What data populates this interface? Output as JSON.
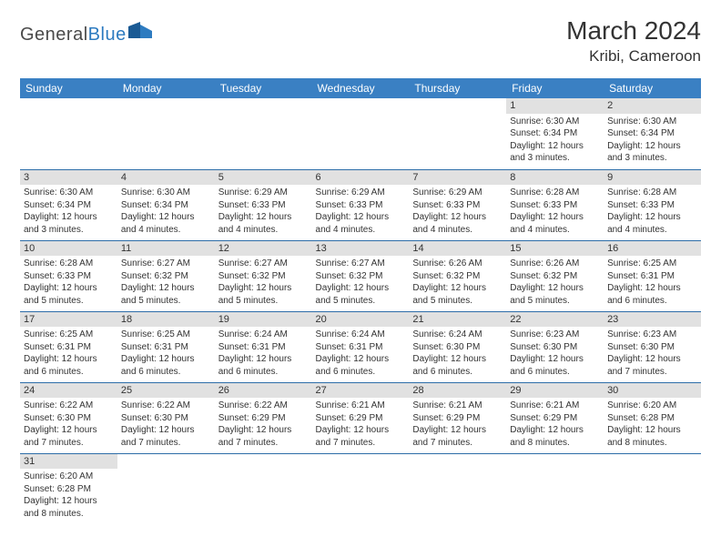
{
  "logo": {
    "text1": "General",
    "text2": "Blue"
  },
  "title": "March 2024",
  "location": "Kribi, Cameroon",
  "colors": {
    "header_bg": "#3a80c3",
    "header_text": "#ffffff",
    "daynum_bg": "#e1e1e1",
    "row_divider": "#2d6da8",
    "logo_gray": "#4a4a4a",
    "logo_blue": "#2d7bc0"
  },
  "day_headers": [
    "Sunday",
    "Monday",
    "Tuesday",
    "Wednesday",
    "Thursday",
    "Friday",
    "Saturday"
  ],
  "weeks": [
    [
      null,
      null,
      null,
      null,
      null,
      {
        "n": "1",
        "sr": "Sunrise: 6:30 AM",
        "ss": "Sunset: 6:34 PM",
        "dl": "Daylight: 12 hours and 3 minutes."
      },
      {
        "n": "2",
        "sr": "Sunrise: 6:30 AM",
        "ss": "Sunset: 6:34 PM",
        "dl": "Daylight: 12 hours and 3 minutes."
      }
    ],
    [
      {
        "n": "3",
        "sr": "Sunrise: 6:30 AM",
        "ss": "Sunset: 6:34 PM",
        "dl": "Daylight: 12 hours and 3 minutes."
      },
      {
        "n": "4",
        "sr": "Sunrise: 6:30 AM",
        "ss": "Sunset: 6:34 PM",
        "dl": "Daylight: 12 hours and 4 minutes."
      },
      {
        "n": "5",
        "sr": "Sunrise: 6:29 AM",
        "ss": "Sunset: 6:33 PM",
        "dl": "Daylight: 12 hours and 4 minutes."
      },
      {
        "n": "6",
        "sr": "Sunrise: 6:29 AM",
        "ss": "Sunset: 6:33 PM",
        "dl": "Daylight: 12 hours and 4 minutes."
      },
      {
        "n": "7",
        "sr": "Sunrise: 6:29 AM",
        "ss": "Sunset: 6:33 PM",
        "dl": "Daylight: 12 hours and 4 minutes."
      },
      {
        "n": "8",
        "sr": "Sunrise: 6:28 AM",
        "ss": "Sunset: 6:33 PM",
        "dl": "Daylight: 12 hours and 4 minutes."
      },
      {
        "n": "9",
        "sr": "Sunrise: 6:28 AM",
        "ss": "Sunset: 6:33 PM",
        "dl": "Daylight: 12 hours and 4 minutes."
      }
    ],
    [
      {
        "n": "10",
        "sr": "Sunrise: 6:28 AM",
        "ss": "Sunset: 6:33 PM",
        "dl": "Daylight: 12 hours and 5 minutes."
      },
      {
        "n": "11",
        "sr": "Sunrise: 6:27 AM",
        "ss": "Sunset: 6:32 PM",
        "dl": "Daylight: 12 hours and 5 minutes."
      },
      {
        "n": "12",
        "sr": "Sunrise: 6:27 AM",
        "ss": "Sunset: 6:32 PM",
        "dl": "Daylight: 12 hours and 5 minutes."
      },
      {
        "n": "13",
        "sr": "Sunrise: 6:27 AM",
        "ss": "Sunset: 6:32 PM",
        "dl": "Daylight: 12 hours and 5 minutes."
      },
      {
        "n": "14",
        "sr": "Sunrise: 6:26 AM",
        "ss": "Sunset: 6:32 PM",
        "dl": "Daylight: 12 hours and 5 minutes."
      },
      {
        "n": "15",
        "sr": "Sunrise: 6:26 AM",
        "ss": "Sunset: 6:32 PM",
        "dl": "Daylight: 12 hours and 5 minutes."
      },
      {
        "n": "16",
        "sr": "Sunrise: 6:25 AM",
        "ss": "Sunset: 6:31 PM",
        "dl": "Daylight: 12 hours and 6 minutes."
      }
    ],
    [
      {
        "n": "17",
        "sr": "Sunrise: 6:25 AM",
        "ss": "Sunset: 6:31 PM",
        "dl": "Daylight: 12 hours and 6 minutes."
      },
      {
        "n": "18",
        "sr": "Sunrise: 6:25 AM",
        "ss": "Sunset: 6:31 PM",
        "dl": "Daylight: 12 hours and 6 minutes."
      },
      {
        "n": "19",
        "sr": "Sunrise: 6:24 AM",
        "ss": "Sunset: 6:31 PM",
        "dl": "Daylight: 12 hours and 6 minutes."
      },
      {
        "n": "20",
        "sr": "Sunrise: 6:24 AM",
        "ss": "Sunset: 6:31 PM",
        "dl": "Daylight: 12 hours and 6 minutes."
      },
      {
        "n": "21",
        "sr": "Sunrise: 6:24 AM",
        "ss": "Sunset: 6:30 PM",
        "dl": "Daylight: 12 hours and 6 minutes."
      },
      {
        "n": "22",
        "sr": "Sunrise: 6:23 AM",
        "ss": "Sunset: 6:30 PM",
        "dl": "Daylight: 12 hours and 6 minutes."
      },
      {
        "n": "23",
        "sr": "Sunrise: 6:23 AM",
        "ss": "Sunset: 6:30 PM",
        "dl": "Daylight: 12 hours and 7 minutes."
      }
    ],
    [
      {
        "n": "24",
        "sr": "Sunrise: 6:22 AM",
        "ss": "Sunset: 6:30 PM",
        "dl": "Daylight: 12 hours and 7 minutes."
      },
      {
        "n": "25",
        "sr": "Sunrise: 6:22 AM",
        "ss": "Sunset: 6:30 PM",
        "dl": "Daylight: 12 hours and 7 minutes."
      },
      {
        "n": "26",
        "sr": "Sunrise: 6:22 AM",
        "ss": "Sunset: 6:29 PM",
        "dl": "Daylight: 12 hours and 7 minutes."
      },
      {
        "n": "27",
        "sr": "Sunrise: 6:21 AM",
        "ss": "Sunset: 6:29 PM",
        "dl": "Daylight: 12 hours and 7 minutes."
      },
      {
        "n": "28",
        "sr": "Sunrise: 6:21 AM",
        "ss": "Sunset: 6:29 PM",
        "dl": "Daylight: 12 hours and 7 minutes."
      },
      {
        "n": "29",
        "sr": "Sunrise: 6:21 AM",
        "ss": "Sunset: 6:29 PM",
        "dl": "Daylight: 12 hours and 8 minutes."
      },
      {
        "n": "30",
        "sr": "Sunrise: 6:20 AM",
        "ss": "Sunset: 6:28 PM",
        "dl": "Daylight: 12 hours and 8 minutes."
      }
    ],
    [
      {
        "n": "31",
        "sr": "Sunrise: 6:20 AM",
        "ss": "Sunset: 6:28 PM",
        "dl": "Daylight: 12 hours and 8 minutes."
      },
      null,
      null,
      null,
      null,
      null,
      null
    ]
  ]
}
